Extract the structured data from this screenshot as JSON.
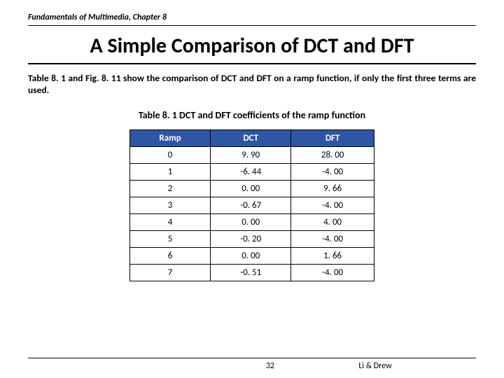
{
  "chapter_header": "Fundamentals of Multimedia, Chapter 8",
  "title": "A Simple Comparison of DCT and DFT",
  "paragraph": "Table 8. 1 and Fig. 8. 11 show the comparison of DCT and DFT on a ramp function, if only the first three terms are used.",
  "table_caption": "Table 8. 1 DCT and DFT coefficients of the ramp function",
  "table": {
    "columns": [
      "Ramp",
      "DCT",
      "DFT"
    ],
    "header_bg": "#2f56a4",
    "header_fg": "#ffffff",
    "border_color": "#000000",
    "rows": [
      [
        "0",
        "9. 90",
        "28. 00"
      ],
      [
        "1",
        "-6. 44",
        "-4. 00"
      ],
      [
        "2",
        "0. 00",
        "9. 66"
      ],
      [
        "3",
        "-0. 67",
        "-4. 00"
      ],
      [
        "4",
        "0. 00",
        "4. 00"
      ],
      [
        "5",
        "-0. 20",
        "-4. 00"
      ],
      [
        "6",
        "0. 00",
        "1. 66"
      ],
      [
        "7",
        "-0. 51",
        "-4. 00"
      ]
    ]
  },
  "footer": {
    "page_number": "32",
    "authors": "Li & Drew"
  },
  "colors": {
    "background": "#ffffff",
    "text": "#000000",
    "rule": "#000000"
  },
  "fonts": {
    "family": "Calibri",
    "title_size_pt": 30,
    "body_size_pt": 13.5,
    "caption_size_pt": 14,
    "header_size_pt": 12,
    "footer_size_pt": 12
  }
}
